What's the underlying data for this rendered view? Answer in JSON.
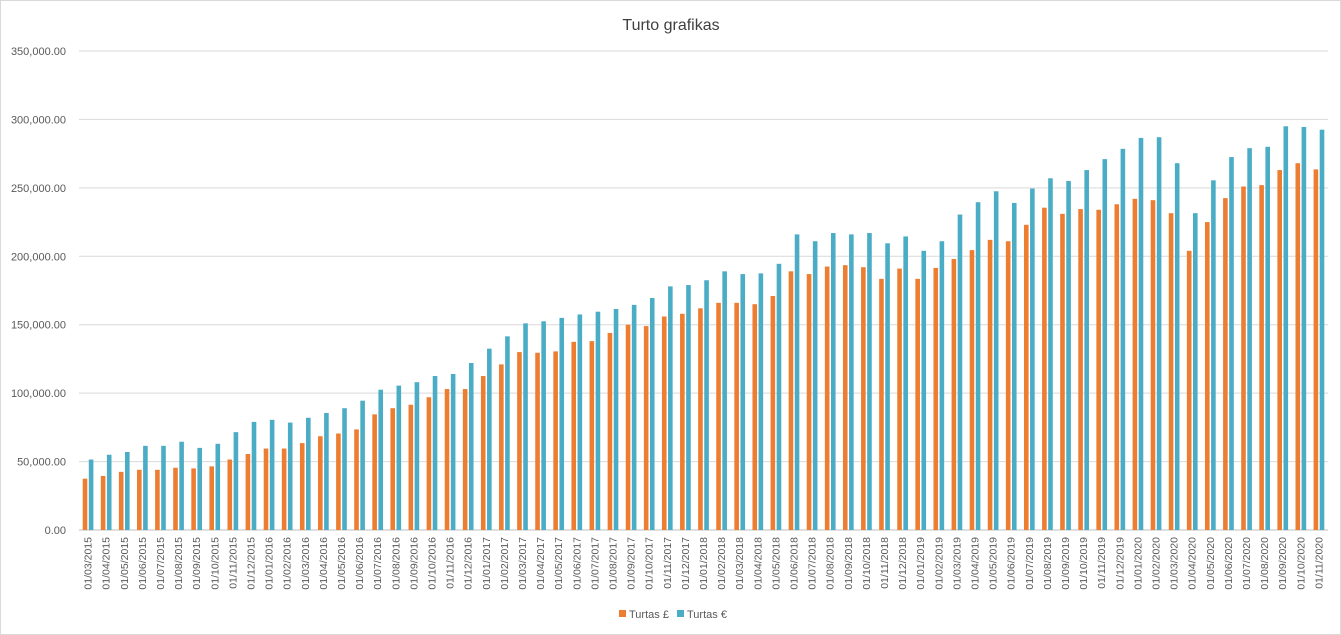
{
  "chart_data": {
    "type": "bar",
    "title": "Turto grafikas",
    "xlabel": "",
    "ylabel": "",
    "ylim": [
      0,
      350000
    ],
    "yticks": [
      "0.00",
      "50,000.00",
      "100,000.00",
      "150,000.00",
      "200,000.00",
      "250,000.00",
      "300,000.00",
      "350,000.00"
    ],
    "grid": true,
    "legend": "bottom-center",
    "categories": [
      "01/03/2015",
      "01/04/2015",
      "01/05/2015",
      "01/06/2015",
      "01/07/2015",
      "01/08/2015",
      "01/09/2015",
      "01/10/2015",
      "01/11/2015",
      "01/12/2015",
      "01/01/2016",
      "01/02/2016",
      "01/03/2016",
      "01/04/2016",
      "01/05/2016",
      "01/06/2016",
      "01/07/2016",
      "01/08/2016",
      "01/09/2016",
      "01/10/2016",
      "01/11/2016",
      "01/12/2016",
      "01/01/2017",
      "01/02/2017",
      "01/03/2017",
      "01/04/2017",
      "01/05/2017",
      "01/06/2017",
      "01/07/2017",
      "01/08/2017",
      "01/09/2017",
      "01/10/2017",
      "01/11/2017",
      "01/12/2017",
      "01/01/2018",
      "01/02/2018",
      "01/03/2018",
      "01/04/2018",
      "01/05/2018",
      "01/06/2018",
      "01/07/2018",
      "01/08/2018",
      "01/09/2018",
      "01/10/2018",
      "01/11/2018",
      "01/12/2018",
      "01/01/2019",
      "01/02/2019",
      "01/03/2019",
      "01/04/2019",
      "01/05/2019",
      "01/06/2019",
      "01/07/2019",
      "01/08/2019",
      "01/09/2019",
      "01/10/2019",
      "01/11/2019",
      "01/12/2019",
      "01/01/2020",
      "01/02/2020",
      "01/03/2020",
      "01/04/2020",
      "01/05/2020",
      "01/06/2020",
      "01/07/2020",
      "01/08/2020",
      "01/09/2020",
      "01/10/2020",
      "01/11/2020"
    ],
    "series": [
      {
        "name": "Turtas £",
        "color": "#ED7D31",
        "values": [
          37500,
          39500,
          42500,
          44000,
          44000,
          45500,
          45000,
          46500,
          51500,
          55500,
          59500,
          59500,
          63500,
          68500,
          70500,
          73500,
          84500,
          89000,
          91500,
          97000,
          103000,
          103000,
          112500,
          121000,
          130000,
          129500,
          130500,
          137500,
          138000,
          144000,
          150000,
          149000,
          156000,
          158000,
          162000,
          166000,
          166000,
          165000,
          171000,
          189000,
          187000,
          192500,
          193500,
          192000,
          183500,
          191000,
          183500,
          191500,
          198000,
          204500,
          212000,
          211000,
          223000,
          235500,
          231000,
          234500,
          234000,
          238000,
          242000,
          241000,
          231500,
          204000,
          225000,
          242500,
          251000,
          252000,
          263000,
          268000,
          263500
        ]
      },
      {
        "name": "Turtas €",
        "color": "#4BACC6",
        "values": [
          51500,
          55000,
          57000,
          61500,
          61500,
          64500,
          60000,
          63000,
          71500,
          79000,
          80500,
          78500,
          82000,
          85500,
          89000,
          94500,
          102500,
          105500,
          108000,
          112500,
          114000,
          122000,
          132500,
          141500,
          151000,
          152500,
          155000,
          157500,
          159500,
          161500,
          164500,
          169500,
          178000,
          179000,
          182500,
          189000,
          187000,
          187500,
          194500,
          216000,
          211000,
          217000,
          216000,
          217000,
          209500,
          214500,
          204000,
          211000,
          230500,
          239500,
          247500,
          239000,
          249500,
          257000,
          255000,
          263000,
          271000,
          278500,
          286500,
          287000,
          268000,
          231500,
          255500,
          272500,
          279000,
          280000,
          295000,
          294500,
          292500
        ]
      }
    ]
  }
}
